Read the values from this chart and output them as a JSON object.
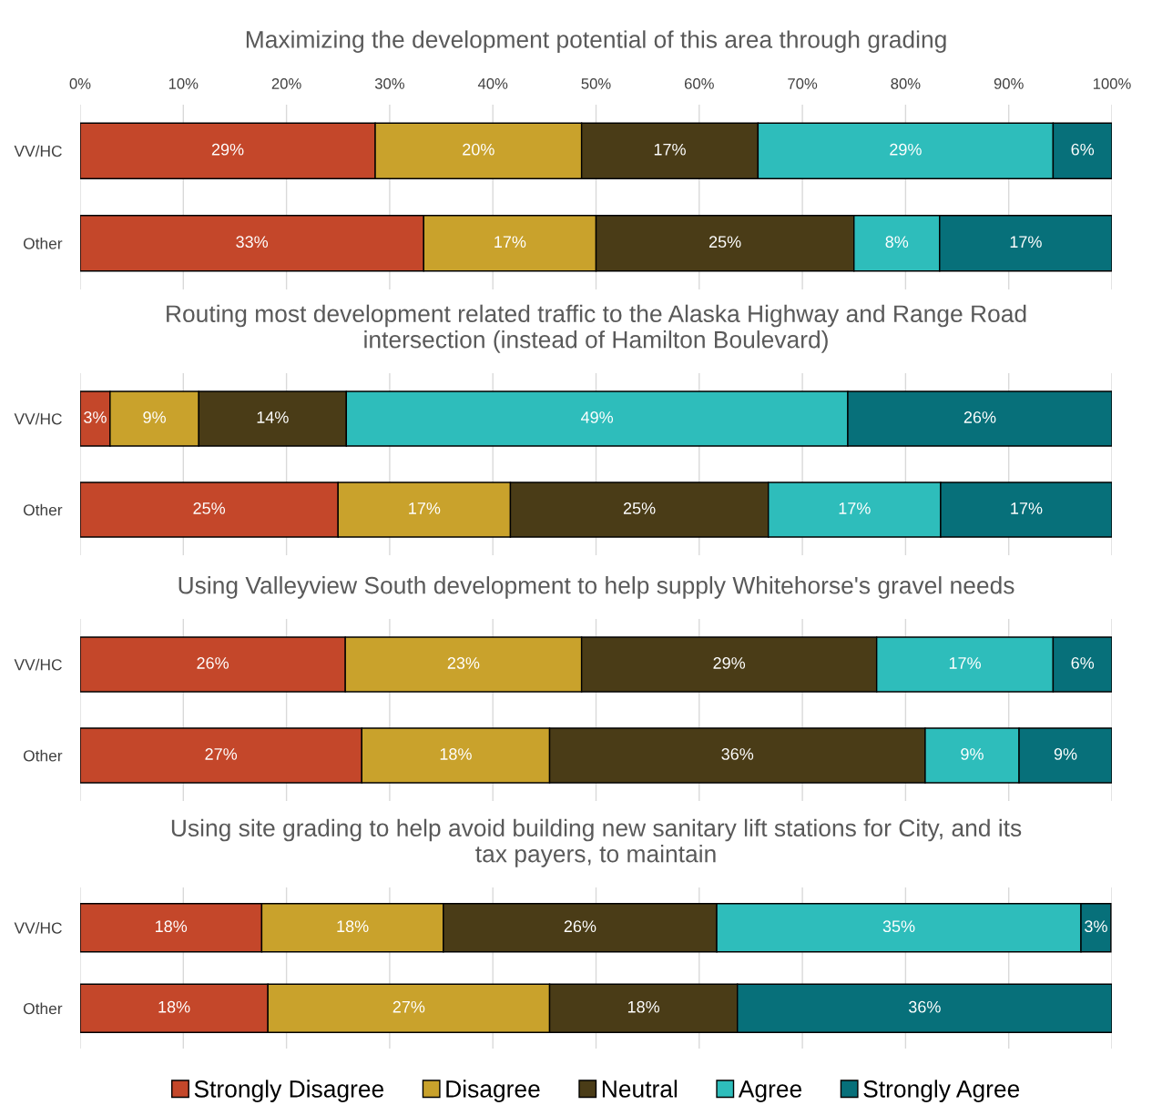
{
  "chart_data": [
    {
      "type": "bar",
      "orientation": "horizontal",
      "stacked": true,
      "title": "Maximizing the development potential of this area through grading",
      "categories": [
        "VV/HC",
        "Other"
      ],
      "xlim": [
        0,
        100
      ],
      "xticks": [
        {
          "value": 0,
          "label": "0%"
        },
        {
          "value": 10,
          "label": "10%"
        },
        {
          "value": 20,
          "label": "20%"
        },
        {
          "value": 30,
          "label": "30%"
        },
        {
          "value": 40,
          "label": "40%"
        },
        {
          "value": 50,
          "label": "50%"
        },
        {
          "value": 60,
          "label": "60%"
        },
        {
          "value": 70,
          "label": "70%"
        },
        {
          "value": 80,
          "label": "80%"
        },
        {
          "value": 90,
          "label": "90%"
        },
        {
          "value": 100,
          "label": "100%"
        }
      ],
      "grid": "x",
      "series": [
        {
          "color": "#c4472a",
          "values": [
            28.6,
            33.3
          ],
          "value_labels": [
            "29%",
            "33%"
          ]
        },
        {
          "color": "#c9a22c",
          "values": [
            20.0,
            16.7
          ],
          "value_labels": [
            "20%",
            "17%"
          ]
        },
        {
          "color": "#4a3c17",
          "values": [
            17.1,
            25.0
          ],
          "value_labels": [
            "17%",
            "25%"
          ]
        },
        {
          "color": "#2ebdbb",
          "values": [
            28.6,
            8.3
          ],
          "value_labels": [
            "29%",
            "8%"
          ]
        },
        {
          "color": "#07707a",
          "values": [
            5.7,
            16.7
          ],
          "value_labels": [
            "6%",
            "17%"
          ]
        }
      ]
    },
    {
      "type": "bar",
      "orientation": "horizontal",
      "stacked": true,
      "title": "Routing most development related traffic to the Alaska Highway and Range Road\nintersection (instead of Hamilton Boulevard)",
      "categories": [
        "VV/HC",
        "Other"
      ],
      "xlim": [
        0,
        100
      ],
      "xticks": [
        0,
        10,
        20,
        30,
        40,
        50,
        60,
        70,
        80,
        90,
        100
      ],
      "tick_labels": "y",
      "grid": "x",
      "series": [
        {
          "color": "#c4472a",
          "values": [
            2.9,
            25.0
          ],
          "value_labels": [
            "3%",
            "25%"
          ]
        },
        {
          "color": "#c9a22c",
          "values": [
            8.6,
            16.7
          ],
          "value_labels": [
            "9%",
            "17%"
          ]
        },
        {
          "color": "#4a3c17",
          "values": [
            14.3,
            25.0
          ],
          "value_labels": [
            "14%",
            "25%"
          ]
        },
        {
          "color": "#2ebdbb",
          "values": [
            48.6,
            16.7
          ],
          "value_labels": [
            "49%",
            "17%"
          ]
        },
        {
          "color": "#07707a",
          "values": [
            25.6,
            16.6
          ],
          "value_labels": [
            "26%",
            "17%"
          ]
        }
      ]
    },
    {
      "type": "bar",
      "orientation": "horizontal",
      "stacked": true,
      "title": "Using Valleyview South development to help supply Whitehorse's gravel needs",
      "categories": [
        "VV/HC",
        "Other"
      ],
      "xlim": [
        0,
        100
      ],
      "xticks": [
        0,
        10,
        20,
        30,
        40,
        50,
        60,
        70,
        80,
        90,
        100
      ],
      "tick_labels": "y",
      "grid": "x",
      "series": [
        {
          "color": "#c4472a",
          "values": [
            25.7,
            27.3
          ],
          "value_labels": [
            "26%",
            "27%"
          ]
        },
        {
          "color": "#c9a22c",
          "values": [
            22.9,
            18.2
          ],
          "value_labels": [
            "23%",
            "18%"
          ]
        },
        {
          "color": "#4a3c17",
          "values": [
            28.6,
            36.4
          ],
          "value_labels": [
            "29%",
            "36%"
          ]
        },
        {
          "color": "#2ebdbb",
          "values": [
            17.1,
            9.1
          ],
          "value_labels": [
            "17%",
            "9%"
          ]
        },
        {
          "color": "#07707a",
          "values": [
            5.7,
            9.0
          ],
          "value_labels": [
            "6%",
            "9%"
          ]
        }
      ]
    },
    {
      "type": "bar",
      "orientation": "horizontal",
      "stacked": true,
      "title": "Using site grading to help avoid building new sanitary lift stations for City, and its\ntax payers, to maintain",
      "categories": [
        "VV/HC",
        "Other"
      ],
      "xlim": [
        0,
        100
      ],
      "xticks": [
        0,
        10,
        20,
        30,
        40,
        50,
        60,
        70,
        80,
        90,
        100
      ],
      "tick_labels": "y",
      "grid": "x",
      "legend": "bottom",
      "series": [
        {
          "name": "Strongly Disagree",
          "color": "#c4472a",
          "values": [
            17.6,
            18.2
          ],
          "value_labels": [
            "18%",
            "18%"
          ]
        },
        {
          "name": "Disagree",
          "color": "#c9a22c",
          "values": [
            17.6,
            27.3
          ],
          "value_labels": [
            "18%",
            "27%"
          ]
        },
        {
          "name": "Neutral",
          "color": "#4a3c17",
          "values": [
            26.5,
            18.2
          ],
          "value_labels": [
            "26%",
            "18%"
          ]
        },
        {
          "name": "Agree",
          "color": "#2ebdbb",
          "values": [
            35.3,
            0
          ],
          "value_labels": [
            "35%",
            null
          ]
        },
        {
          "name": "Strongly Agree",
          "color": "#07707a",
          "values": [
            2.9,
            36.3
          ],
          "value_labels": [
            "3%",
            "36%"
          ]
        }
      ]
    }
  ]
}
